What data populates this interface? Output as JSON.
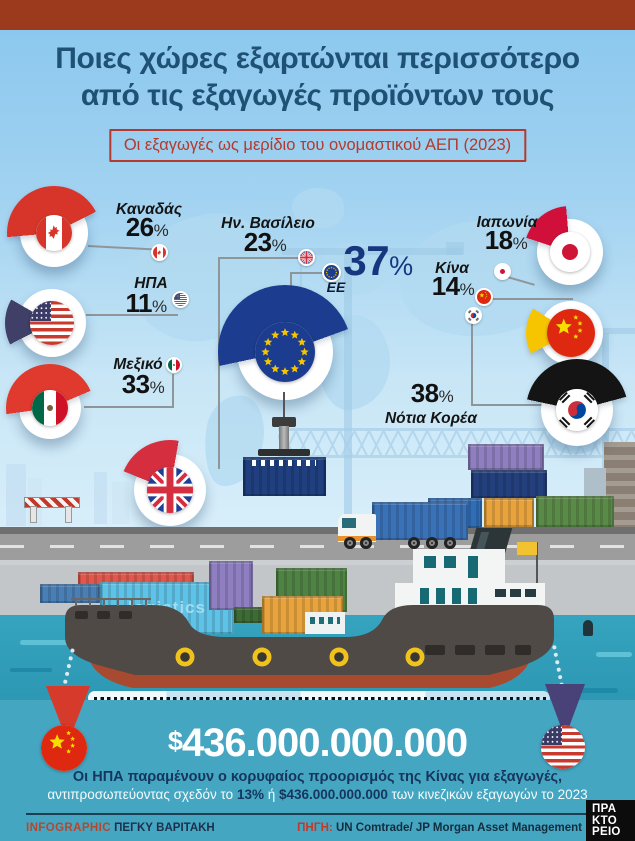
{
  "header": {
    "title_line1": "Ποιες χώρες εξαρτώνται περισσότερο",
    "title_line2": "από τις εξαγωγές προϊόντων τους",
    "subtitle": "Οι εξαγωγές ως μερίδιο του ονομαστικού ΑΕΠ (2023)"
  },
  "chart_data": {
    "type": "pie",
    "title": "Οι εξαγωγές ως μερίδιο του ονομαστικού ΑΕΠ (2023)",
    "unit": "% του ονομαστικού ΑΕΠ",
    "percent_sign": "%",
    "series": [
      {
        "id": "canada",
        "label": "Καναδάς",
        "value": 26,
        "color": "#d7352a"
      },
      {
        "id": "usa",
        "label": "ΗΠΑ",
        "value": 11,
        "color": "#3f3f68"
      },
      {
        "id": "mexico",
        "label": "Μεξικό",
        "value": 33,
        "color": "#e0392e"
      },
      {
        "id": "uk",
        "label": "Ην. Βασίλειο",
        "value": 23,
        "color": "#d52f3f"
      },
      {
        "id": "eu",
        "label": "ΕΕ",
        "value": 37,
        "color": "#1c3d8f"
      },
      {
        "id": "japan",
        "label": "Ιαπωνία",
        "value": 18,
        "color": "#d0103a"
      },
      {
        "id": "china",
        "label": "Κίνα",
        "value": 14,
        "color": "#f7c500"
      },
      {
        "id": "korea",
        "label": "Νότια Κορέα",
        "value": 38,
        "color": "#141414"
      }
    ]
  },
  "ship": {
    "hull_text": "logistics"
  },
  "bottom": {
    "currency": "$",
    "amount": "436.000.000.000",
    "line1": "Οι ΗΠΑ παραμένουν ο κορυφαίος προορισμός της Κίνας για εξαγωγές,",
    "line2_prefix": "αντιπροσωπεύοντας σχεδόν το ",
    "line2_bold1": "13%",
    "line2_mid": " ή ",
    "line2_bold2": "$436.000.000.000",
    "line2_suffix": " των κινεζικών εξαγωγών το 2023"
  },
  "credits": {
    "infographic_label": "INFOGRAPHIC",
    "author": "ΠΕΓΚΥ ΒΑΡΙΤΑΚΗ",
    "source_label": "ΠΗΓΗ:",
    "source": "UN Comtrade/ JP Morgan Asset Management",
    "logo_text": "ΠΡΑ\nΚΤΟ\nΡΕΙΟ"
  },
  "palette": {
    "top_bar": "#9c3a1d",
    "accent_red": "#b5392c",
    "title_blue": "#1e5174",
    "eu_navy": "#16377f",
    "panel_teal": "#45a6c2",
    "stat_navy": "#16355e"
  }
}
